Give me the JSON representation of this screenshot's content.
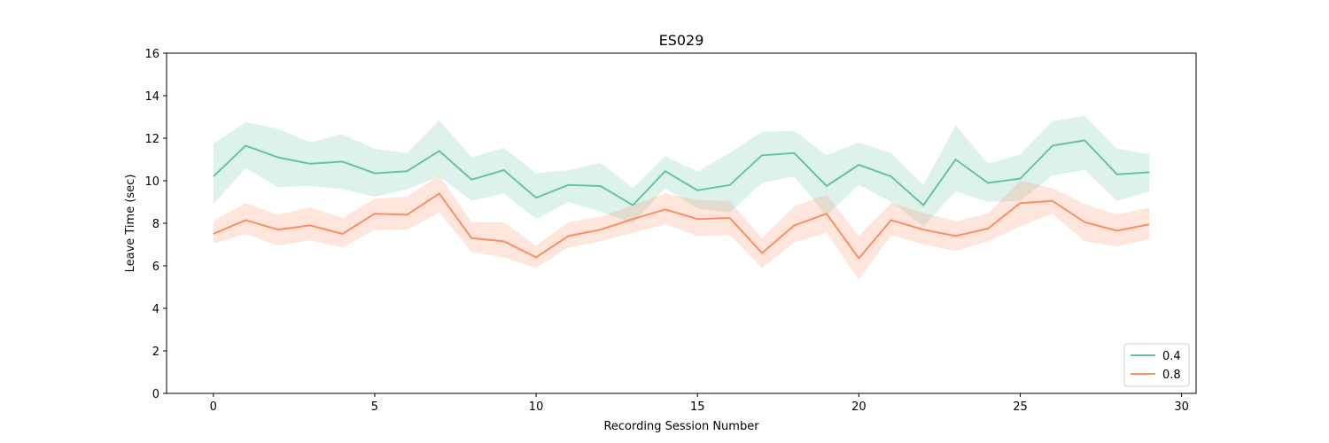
{
  "chart_data": {
    "type": "line",
    "title": "ES029",
    "xlabel": "Recording Session Number",
    "ylabel": "Leave Time (sec)",
    "xlim": [
      -1.45,
      30.45
    ],
    "ylim": [
      0,
      16
    ],
    "xticks": [
      0,
      5,
      10,
      15,
      20,
      25,
      30
    ],
    "yticks": [
      0,
      2,
      4,
      6,
      8,
      10,
      12,
      14,
      16
    ],
    "grid": false,
    "legend_position": "lower-right",
    "x": [
      0,
      1,
      2,
      3,
      4,
      5,
      6,
      7,
      8,
      9,
      10,
      11,
      12,
      13,
      14,
      15,
      16,
      17,
      18,
      19,
      20,
      21,
      22,
      23,
      24,
      25,
      26,
      27,
      28,
      29
    ],
    "series": [
      {
        "name": "0.4",
        "color": "#66c2a5",
        "values": [
          10.2,
          11.65,
          11.1,
          10.8,
          10.9,
          10.35,
          10.45,
          11.4,
          10.05,
          10.5,
          9.2,
          9.8,
          9.75,
          8.85,
          10.45,
          9.55,
          9.8,
          11.2,
          11.3,
          9.75,
          10.75,
          10.2,
          8.85,
          11.0,
          9.9,
          10.1,
          11.65,
          11.9,
          10.3,
          10.4
        ],
        "lower": [
          8.9,
          10.6,
          9.7,
          9.75,
          9.6,
          9.25,
          9.6,
          10.2,
          9.05,
          9.4,
          8.2,
          9.0,
          8.55,
          8.0,
          9.65,
          8.7,
          8.5,
          9.9,
          10.2,
          8.35,
          9.8,
          9.0,
          7.85,
          9.5,
          9.0,
          9.05,
          10.25,
          10.5,
          9.05,
          9.5
        ],
        "upper": [
          11.75,
          12.75,
          12.45,
          11.8,
          12.2,
          11.5,
          11.3,
          12.85,
          11.1,
          11.55,
          10.35,
          10.5,
          10.85,
          9.65,
          11.15,
          10.45,
          11.3,
          12.3,
          12.35,
          11.2,
          11.8,
          11.3,
          9.8,
          12.6,
          10.8,
          11.25,
          12.8,
          13.05,
          11.5,
          11.25
        ]
      },
      {
        "name": "0.8",
        "color": "#fc8d62",
        "values": [
          7.5,
          8.15,
          7.7,
          7.9,
          7.5,
          8.45,
          8.4,
          9.4,
          7.3,
          7.15,
          6.4,
          7.4,
          7.7,
          8.2,
          8.65,
          8.2,
          8.25,
          6.6,
          7.9,
          8.45,
          6.35,
          8.15,
          7.7,
          7.4,
          7.75,
          8.95,
          9.05,
          8.05,
          7.65,
          7.95
        ],
        "lower": [
          7.05,
          7.5,
          6.95,
          7.2,
          6.85,
          7.7,
          7.7,
          8.5,
          6.65,
          6.4,
          5.9,
          6.85,
          7.15,
          7.55,
          7.95,
          7.4,
          7.45,
          5.9,
          7.1,
          7.55,
          5.35,
          7.45,
          7.0,
          6.7,
          7.15,
          7.85,
          8.45,
          7.15,
          6.9,
          7.25
        ],
        "upper": [
          8.1,
          8.95,
          8.4,
          8.75,
          8.25,
          9.15,
          9.25,
          10.25,
          8.05,
          8.05,
          6.95,
          8.05,
          8.3,
          8.85,
          9.4,
          9.1,
          9.05,
          7.3,
          8.8,
          9.35,
          7.4,
          8.95,
          8.5,
          8.1,
          8.45,
          10.0,
          9.65,
          8.9,
          8.4,
          8.75
        ]
      }
    ]
  }
}
